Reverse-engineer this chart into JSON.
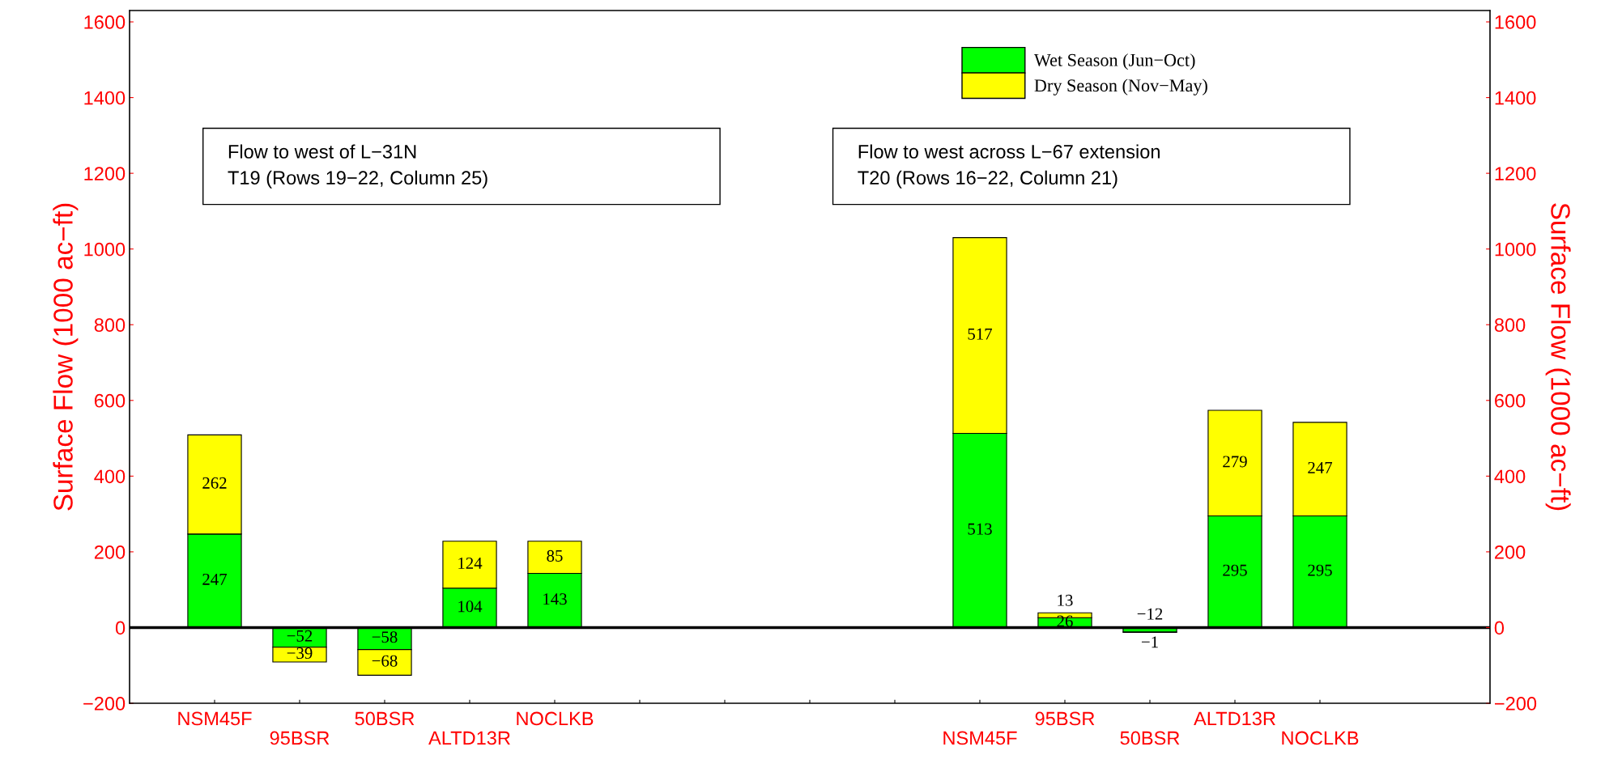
{
  "chart_data": {
    "type": "bar",
    "stacked": true,
    "categories": [
      "NSM45F",
      "95BSR",
      "50BSR",
      "ALTD13R",
      "NOCLKB",
      null,
      null,
      null,
      null,
      "NSM45F",
      "95BSR",
      "50BSR",
      "ALTD13R",
      "NOCLKB"
    ],
    "series": [
      {
        "name": "Wet Season (Jun−Oct)",
        "color": "#00ff00",
        "values": [
          247,
          -52,
          -58,
          104,
          143,
          null,
          null,
          null,
          null,
          513,
          26,
          -12,
          295,
          295
        ]
      },
      {
        "name": "Dry Season (Nov−May)",
        "color": "#ffff00",
        "values": [
          262,
          -39,
          -68,
          124,
          85,
          null,
          null,
          null,
          null,
          517,
          13,
          -1,
          279,
          247
        ]
      }
    ],
    "data_labels": true,
    "ylabel": "Surface Flow (1000 ac−ft)",
    "y2label": "Surface Flow (1000 ac−ft)",
    "ylim": [
      -200,
      1630
    ],
    "yticks": [
      -200,
      0,
      200,
      400,
      600,
      800,
      1000,
      1200,
      1400,
      1600
    ],
    "y2lim": [
      -200,
      1630
    ],
    "y2ticks": [
      -200,
      0,
      200,
      400,
      600,
      800,
      1000,
      1200,
      1400,
      1600
    ],
    "ref_lines": [
      {
        "axis": "y",
        "value": 0,
        "color": "#000000"
      }
    ],
    "annotations": [
      "Flow to west of L−31N\nT19 (Rows 19−22, Column 25)",
      "Flow to west across L−67 extension\nT20 (Rows 16−22, Column 21)"
    ],
    "legend": "top right",
    "grid": false
  }
}
